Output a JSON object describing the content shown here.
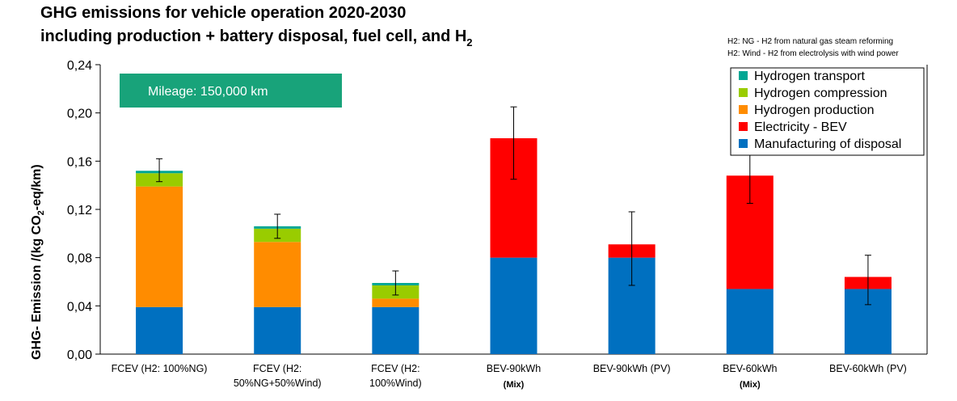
{
  "chart_data": {
    "type": "bar",
    "stacked": true,
    "title": [
      "GHG emissions for vehicle operation 2020-2030",
      "including production + battery disposal, fuel cell, and H",
      "2"
    ],
    "notes": [
      "H2: NG - H2 from natural gas steam reforming",
      "H2: Wind - H2 from electrolysis with wind power"
    ],
    "annotation": "Mileage: 150,000 km",
    "ylabel": {
      "prefix": "GHG- Emission   /(kg CO",
      "sub": "2",
      "suffix": "-eq/km)"
    },
    "ylim": [
      0,
      0.24
    ],
    "yticks": [
      "0,00",
      "0,04",
      "0,08",
      "0,12",
      "0,16",
      "0,20",
      "0,24"
    ],
    "grid": false,
    "legend_position": "top-right",
    "categories": [
      {
        "lines": [
          "FCEV (H2: 100%NG)"
        ],
        "bold": ""
      },
      {
        "lines": [
          "FCEV (H2:",
          "50%NG+50%Wind)"
        ],
        "bold": ""
      },
      {
        "lines": [
          "FCEV (H2:",
          "100%Wind)"
        ],
        "bold": ""
      },
      {
        "lines": [
          "BEV-90kWh"
        ],
        "bold": "(Mix)"
      },
      {
        "lines": [
          "BEV-90kWh (PV)"
        ],
        "bold": ""
      },
      {
        "lines": [
          "BEV-60kWh"
        ],
        "bold": "(Mix)"
      },
      {
        "lines": [
          "BEV-60kWh (PV)"
        ],
        "bold": ""
      }
    ],
    "series": [
      {
        "name": "Manufacturing of disposal",
        "color": "#0070c0",
        "values": [
          0.039,
          0.039,
          0.039,
          0.08,
          0.08,
          0.054,
          0.054
        ]
      },
      {
        "name": "Electricity - BEV",
        "color": "#ff0000",
        "values": [
          0,
          0,
          0,
          0.099,
          0.011,
          0.094,
          0.01
        ]
      },
      {
        "name": "Hydrogen production",
        "color": "#ff8c00",
        "values": [
          0.1,
          0.054,
          0.007,
          0,
          0,
          0,
          0
        ]
      },
      {
        "name": "Hydrogen compression",
        "color": "#99cc00",
        "values": [
          0.011,
          0.011,
          0.011,
          0,
          0,
          0,
          0
        ]
      },
      {
        "name": "Hydrogen transport",
        "color": "#00a693",
        "values": [
          0.002,
          0.002,
          0.002,
          0,
          0,
          0,
          0
        ]
      }
    ],
    "legend_order": [
      "Hydrogen transport",
      "Hydrogen compression",
      "Hydrogen production",
      "Electricity - BEV",
      "Manufacturing of disposal"
    ],
    "error_bars": [
      {
        "low": 0.143,
        "high": 0.162
      },
      {
        "low": 0.096,
        "high": 0.116
      },
      {
        "low": 0.049,
        "high": 0.069
      },
      {
        "low": 0.145,
        "high": 0.205
      },
      {
        "low": 0.057,
        "high": 0.118
      },
      {
        "low": 0.125,
        "high": 0.165
      },
      {
        "low": 0.041,
        "high": 0.082
      }
    ],
    "colors": {
      "mileage_box": "#18a37a"
    }
  }
}
